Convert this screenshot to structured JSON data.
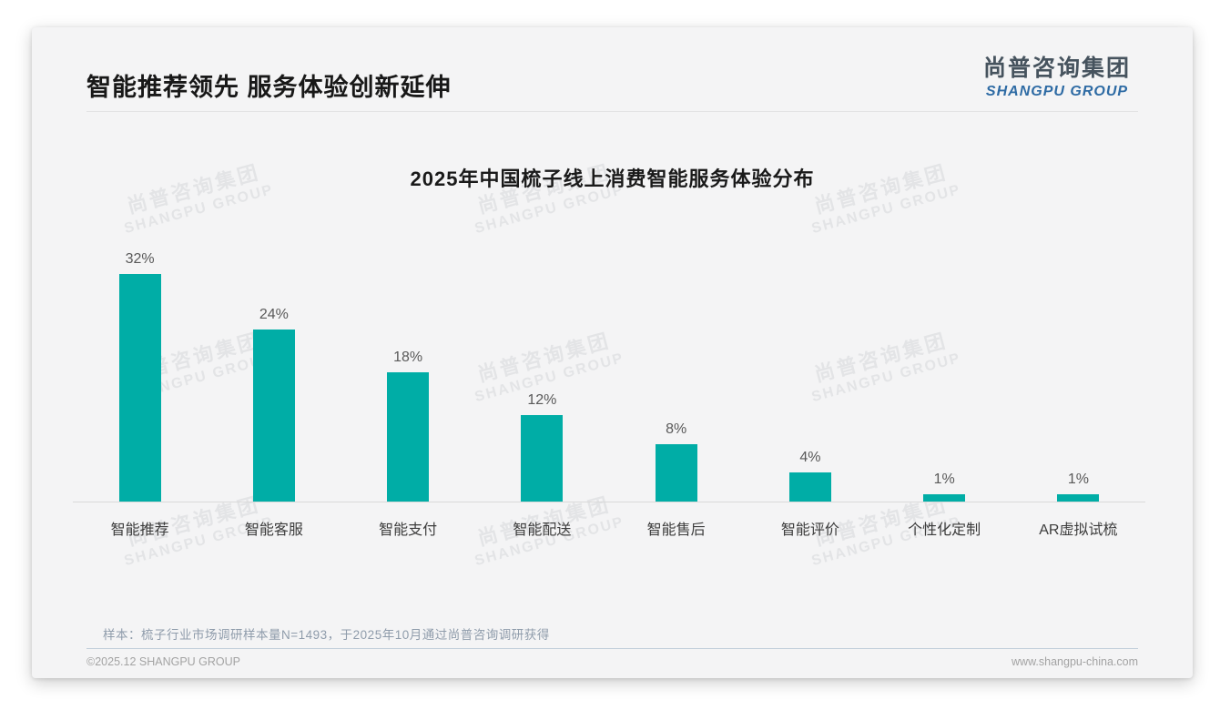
{
  "header": {
    "title": "智能推荐领先 服务体验创新延伸"
  },
  "logo": {
    "cn": "尚普咨询集团",
    "en": "SHANGPU GROUP"
  },
  "chart_data": {
    "type": "bar",
    "title": "2025年中国梳子线上消费智能服务体验分布",
    "categories": [
      "智能推荐",
      "智能客服",
      "智能支付",
      "智能配送",
      "智能售后",
      "智能评价",
      "个性化定制",
      "AR虚拟试梳"
    ],
    "values": [
      32,
      24,
      18,
      12,
      8,
      4,
      1,
      1
    ],
    "unit": "%",
    "data_labels": [
      "32%",
      "24%",
      "18%",
      "12%",
      "8%",
      "4%",
      "1%",
      "1%"
    ],
    "xlabel": "",
    "ylabel": "",
    "ylim": [
      0,
      35
    ],
    "grid": false,
    "legend": "none",
    "bar_color": "#00ada6"
  },
  "watermark": {
    "cn": "尚普咨询集团",
    "en": "SHANGPU GROUP"
  },
  "footnote": "样本：梳子行业市场调研样本量N=1493，于2025年10月通过尚普咨询调研获得",
  "footer": {
    "left": "©2025.12 SHANGPU GROUP",
    "right": "www.shangpu-china.com"
  }
}
